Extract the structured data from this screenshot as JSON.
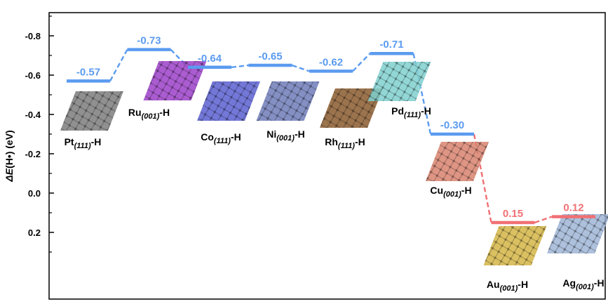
{
  "chart_data": {
    "type": "line",
    "ylabel": "ΔE(H•) (eV)",
    "ylim": [
      0.42,
      -0.92
    ],
    "y_axis_inverted": true,
    "y_ticks": [
      {
        "value": -0.8,
        "label": "-0.8"
      },
      {
        "value": -0.6,
        "label": "-0.6"
      },
      {
        "value": -0.4,
        "label": "-0.4"
      },
      {
        "value": -0.2,
        "label": "-0.2"
      },
      {
        "value": 0.0,
        "label": "0.0"
      },
      {
        "value": 0.2,
        "label": "0.2"
      }
    ],
    "grid": false,
    "legend": "none",
    "colors": {
      "negative": "#5b9bf0",
      "positive": "#f07073",
      "axis": "#000000"
    },
    "series": [
      {
        "points": [
          {
            "metal": "Pt",
            "facet": "(111)",
            "suffix": "-H",
            "value": -0.57,
            "value_label": "-0.57",
            "color": "#5b9bf0",
            "structure_color": "#7d7d7d"
          },
          {
            "metal": "Ru",
            "facet": "(001)",
            "suffix": "-H",
            "value": -0.73,
            "value_label": "-0.73",
            "color": "#5b9bf0",
            "structure_color": "#9b3fc8"
          },
          {
            "metal": "Co",
            "facet": "(111)",
            "suffix": "-H",
            "value": -0.64,
            "value_label": "-0.64",
            "color": "#5b9bf0",
            "structure_color": "#5b5fd0"
          },
          {
            "metal": "Ni",
            "facet": "(001)",
            "suffix": "-H",
            "value": -0.65,
            "value_label": "-0.65",
            "color": "#5b9bf0",
            "structure_color": "#6e7bb8"
          },
          {
            "metal": "Rh",
            "facet": "(111)",
            "suffix": "-H",
            "value": -0.62,
            "value_label": "-0.62",
            "color": "#5b9bf0",
            "structure_color": "#8a5a2e"
          },
          {
            "metal": "Pd",
            "facet": "(111)",
            "suffix": "-H",
            "value": -0.71,
            "value_label": "-0.71",
            "color": "#5b9bf0",
            "structure_color": "#7fd0cf"
          },
          {
            "metal": "Cu",
            "facet": "(001)",
            "suffix": "-H",
            "value": -0.3,
            "value_label": "-0.30",
            "color": "#5b9bf0",
            "structure_color": "#d9836f"
          },
          {
            "metal": "Au",
            "facet": "(001)",
            "suffix": "-H",
            "value": 0.15,
            "value_label": "0.15",
            "color": "#f07073",
            "structure_color": "#d3b545"
          },
          {
            "metal": "Ag",
            "facet": "(001)",
            "suffix": "-H",
            "value": 0.12,
            "value_label": "0.12",
            "color": "#f07073",
            "structure_color": "#9fb5d6"
          }
        ]
      }
    ]
  }
}
